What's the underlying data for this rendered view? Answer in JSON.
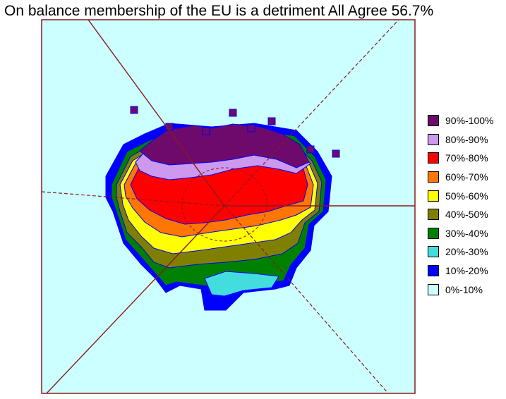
{
  "chart_data": {
    "type": "heatmap",
    "title": "On balance membership of the EU is a detriment All Agree 56.7%",
    "legend_placement": "right",
    "legend": [
      {
        "label": "90%-100%",
        "color": "#6d0a6b"
      },
      {
        "label": "80%-90%",
        "color": "#cc99ee"
      },
      {
        "label": "70%-80%",
        "color": "#ff0000"
      },
      {
        "label": "60%-70%",
        "color": "#ff7700"
      },
      {
        "label": "50%-60%",
        "color": "#ffff00"
      },
      {
        "label": "40%-50%",
        "color": "#808000"
      },
      {
        "label": "30%-40%",
        "color": "#008000"
      },
      {
        "label": "20%-30%",
        "color": "#44dddd"
      },
      {
        "label": "10%-20%",
        "color": "#0000ff"
      },
      {
        "label": "0%-10%",
        "color": "#ccffff"
      }
    ]
  }
}
